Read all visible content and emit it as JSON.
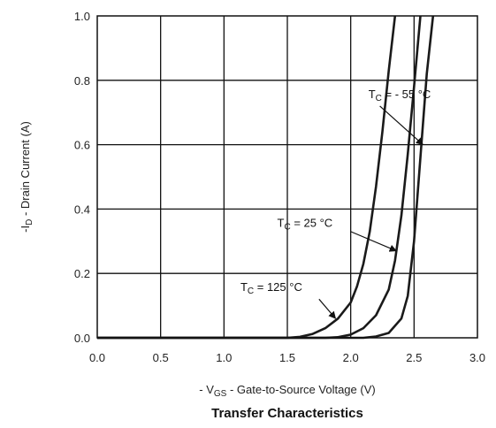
{
  "chart_data": {
    "type": "line",
    "title": "Transfer Characteristics",
    "xlabel": {
      "prefix": "- V",
      "sub": "GS",
      "rest": " - Gate-to-Source Voltage (V)"
    },
    "ylabel": {
      "prefix": "-I",
      "sub": "D",
      "rest": " - Drain Current (A)"
    },
    "xlim": [
      0,
      3.0
    ],
    "ylim": [
      0,
      1.0
    ],
    "x_ticks": [
      "0.0",
      "0.5",
      "1.0",
      "1.5",
      "2.0",
      "2.5",
      "3.0"
    ],
    "y_ticks": [
      "0.0",
      "0.2",
      "0.4",
      "0.6",
      "0.8",
      "1.0"
    ],
    "grid": true,
    "series": [
      {
        "name": "125 °C",
        "label": {
          "prefix": "T",
          "sub": "C",
          "rest": " = 125 °C"
        },
        "x": [
          0.0,
          1.5,
          1.6,
          1.7,
          1.8,
          1.9,
          2.0,
          2.05,
          2.1,
          2.15,
          2.2,
          2.25,
          2.3,
          2.35
        ],
        "y": [
          0.0,
          0.0,
          0.003,
          0.012,
          0.03,
          0.06,
          0.11,
          0.16,
          0.23,
          0.33,
          0.47,
          0.64,
          0.83,
          1.0
        ]
      },
      {
        "name": "25 °C",
        "label": {
          "prefix": "T",
          "sub": "C",
          "rest": " = 25 °C"
        },
        "x": [
          0.0,
          1.8,
          1.9,
          2.0,
          2.1,
          2.2,
          2.3,
          2.35,
          2.4,
          2.45,
          2.5,
          2.55
        ],
        "y": [
          0.0,
          0.0,
          0.002,
          0.01,
          0.03,
          0.07,
          0.15,
          0.24,
          0.38,
          0.57,
          0.78,
          1.0
        ]
      },
      {
        "name": "-55 °C",
        "label": {
          "prefix": "T",
          "sub": "C",
          "rest": " = - 55 °C"
        },
        "x": [
          0.0,
          2.1,
          2.2,
          2.3,
          2.4,
          2.45,
          2.5,
          2.55,
          2.6,
          2.65
        ],
        "y": [
          0.0,
          0.0,
          0.004,
          0.015,
          0.06,
          0.13,
          0.3,
          0.56,
          0.82,
          1.0
        ]
      }
    ],
    "annotations": [
      {
        "series": "-55 °C",
        "text_at": [
          2.14,
          0.745
        ],
        "arrow_from": [
          2.23,
          0.72
        ],
        "arrow_to": [
          2.57,
          0.6
        ]
      },
      {
        "series": "25 °C",
        "text_at": [
          1.42,
          0.345
        ],
        "arrow_from": [
          2.0,
          0.33
        ],
        "arrow_to": [
          2.36,
          0.27
        ]
      },
      {
        "series": "125 °C",
        "text_at": [
          1.13,
          0.145
        ],
        "arrow_from": [
          1.75,
          0.12
        ],
        "arrow_to": [
          1.88,
          0.06
        ]
      }
    ]
  }
}
